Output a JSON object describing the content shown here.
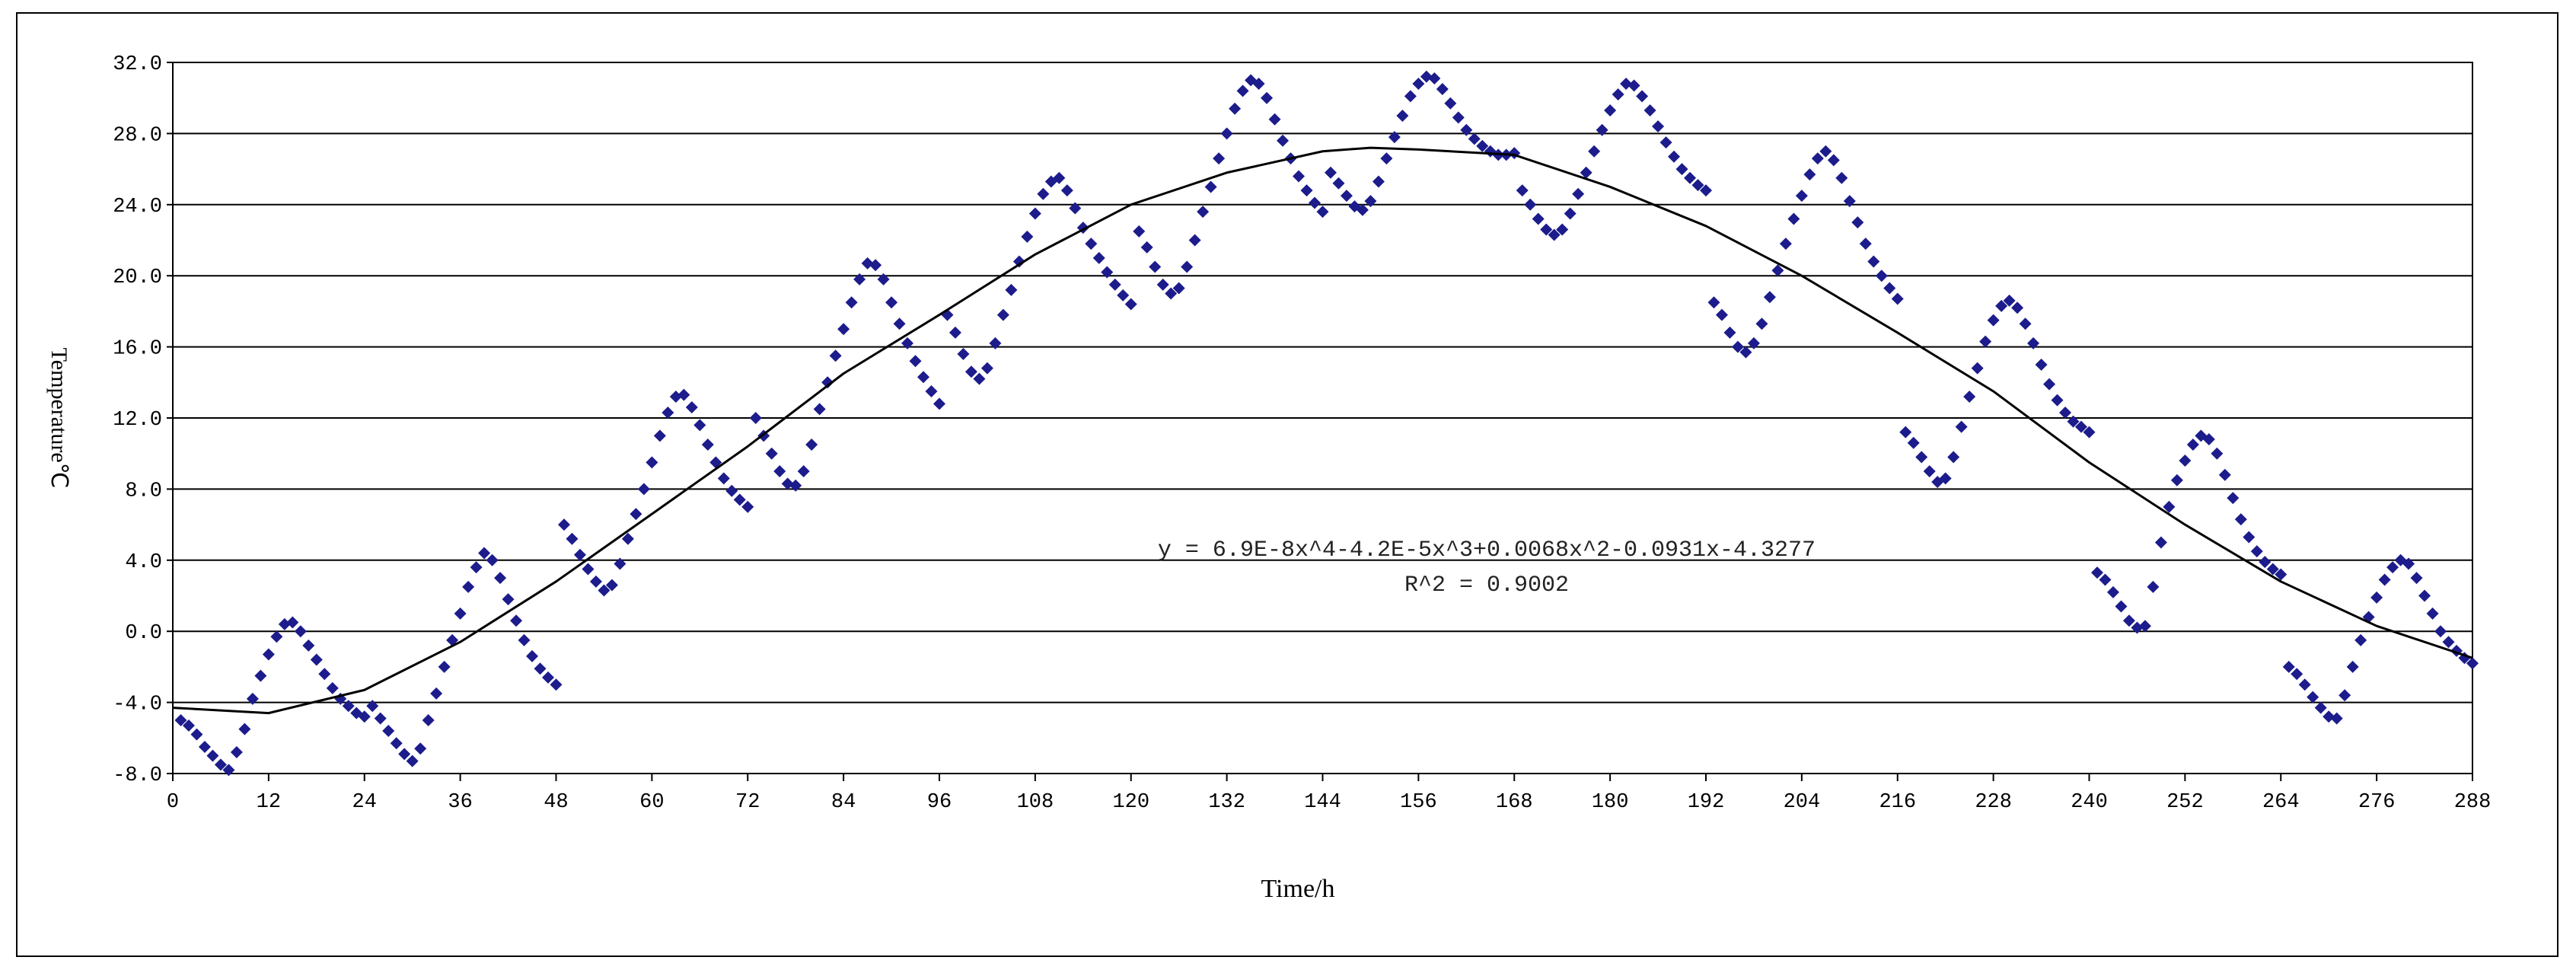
{
  "chart_data": {
    "type": "scatter",
    "xlabel": "Time/h",
    "ylabel": "Temperature℃",
    "xlim": [
      0,
      288
    ],
    "ylim": [
      -8,
      32
    ],
    "xticks": [
      0,
      12,
      24,
      36,
      48,
      60,
      72,
      84,
      96,
      108,
      120,
      132,
      144,
      156,
      168,
      180,
      192,
      204,
      216,
      228,
      240,
      252,
      264,
      276,
      288
    ],
    "yticks": [
      {
        "value": -8,
        "label": "-8.0"
      },
      {
        "value": -4,
        "label": "-4.0"
      },
      {
        "value": 0,
        "label": "0.0"
      },
      {
        "value": 4,
        "label": "4.0"
      },
      {
        "value": 8,
        "label": "8.0"
      },
      {
        "value": 12,
        "label": "12.0"
      },
      {
        "value": 16,
        "label": "16.0"
      },
      {
        "value": 20,
        "label": "20.0"
      },
      {
        "value": 24,
        "label": "24.0"
      },
      {
        "value": 28,
        "label": "28.0"
      },
      {
        "value": 32,
        "label": "32.0"
      }
    ],
    "grid": true,
    "color": "#1c1c8c",
    "x": [
      1,
      2,
      3,
      4,
      5,
      6,
      7,
      8,
      9,
      10,
      11,
      12,
      13,
      14,
      15,
      16,
      17,
      18,
      19,
      20,
      21,
      22,
      23,
      24,
      25,
      26,
      27,
      28,
      29,
      30,
      31,
      32,
      33,
      34,
      35,
      36,
      37,
      38,
      39,
      40,
      41,
      42,
      43,
      44,
      45,
      46,
      47,
      48,
      49,
      50,
      51,
      52,
      53,
      54,
      55,
      56,
      57,
      58,
      59,
      60,
      61,
      62,
      63,
      64,
      65,
      66,
      67,
      68,
      69,
      70,
      71,
      72,
      73,
      74,
      75,
      76,
      77,
      78,
      79,
      80,
      81,
      82,
      83,
      84,
      85,
      86,
      87,
      88,
      89,
      90,
      91,
      92,
      93,
      94,
      95,
      96,
      97,
      98,
      99,
      100,
      101,
      102,
      103,
      104,
      105,
      106,
      107,
      108,
      109,
      110,
      111,
      112,
      113,
      114,
      115,
      116,
      117,
      118,
      119,
      120,
      121,
      122,
      123,
      124,
      125,
      126,
      127,
      128,
      129,
      130,
      131,
      132,
      133,
      134,
      135,
      136,
      137,
      138,
      139,
      140,
      141,
      142,
      143,
      144,
      145,
      146,
      147,
      148,
      149,
      150,
      151,
      152,
      153,
      154,
      155,
      156,
      157,
      158,
      159,
      160,
      161,
      162,
      163,
      164,
      165,
      166,
      167,
      168,
      169,
      170,
      171,
      172,
      173,
      174,
      175,
      176,
      177,
      178,
      179,
      180,
      181,
      182,
      183,
      184,
      185,
      186,
      187,
      188,
      189,
      190,
      191,
      192,
      193,
      194,
      195,
      196,
      197,
      198,
      199,
      200,
      201,
      202,
      203,
      204,
      205,
      206,
      207,
      208,
      209,
      210,
      211,
      212,
      213,
      214,
      215,
      216,
      217,
      218,
      219,
      220,
      221,
      222,
      223,
      224,
      225,
      226,
      227,
      228,
      229,
      230,
      231,
      232,
      233,
      234,
      235,
      236,
      237,
      238,
      239,
      240,
      241,
      242,
      243,
      244,
      245,
      246,
      247,
      248,
      249,
      250,
      251,
      252,
      253,
      254,
      255,
      256,
      257,
      258,
      259,
      260,
      261,
      262,
      263,
      264,
      265,
      266,
      267,
      268,
      269,
      270,
      271,
      272,
      273,
      274,
      275,
      276,
      277,
      278,
      279,
      280,
      281,
      282,
      283,
      284,
      285,
      286,
      287,
      288
    ],
    "values": [
      -5,
      -5.3,
      -5.8,
      -6.5,
      -7,
      -7.5,
      -7.8,
      -6.8,
      -5.5,
      -3.8,
      -2.5,
      -1.3,
      -0.3,
      0.4,
      0.5,
      0,
      -0.8,
      -1.6,
      -2.4,
      -3.2,
      -3.8,
      -4.2,
      -4.6,
      -4.8,
      -4.2,
      -4.9,
      -5.6,
      -6.3,
      -6.9,
      -7.3,
      -6.6,
      -5,
      -3.5,
      -2,
      -0.5,
      1,
      2.5,
      3.6,
      4.4,
      4,
      3,
      1.8,
      0.6,
      -0.5,
      -1.4,
      -2.1,
      -2.6,
      -3,
      6,
      5.2,
      4.3,
      3.5,
      2.8,
      2.3,
      2.6,
      3.8,
      5.2,
      6.6,
      8,
      9.5,
      11,
      12.3,
      13.2,
      13.3,
      12.6,
      11.6,
      10.5,
      9.5,
      8.6,
      7.9,
      7.4,
      7,
      12,
      11,
      10,
      9,
      8.3,
      8.2,
      9,
      10.5,
      12.5,
      14,
      15.5,
      17,
      18.5,
      19.8,
      20.7,
      20.6,
      19.8,
      18.5,
      17.3,
      16.2,
      15.2,
      14.3,
      13.5,
      12.8,
      17.8,
      16.8,
      15.6,
      14.6,
      14.2,
      14.8,
      16.2,
      17.8,
      19.2,
      20.8,
      22.2,
      23.5,
      24.6,
      25.3,
      25.5,
      24.8,
      23.8,
      22.7,
      21.8,
      21,
      20.2,
      19.5,
      18.9,
      18.4,
      22.5,
      21.6,
      20.5,
      19.5,
      19,
      19.3,
      20.5,
      22,
      23.6,
      25,
      26.6,
      28,
      29.4,
      30.4,
      31,
      30.8,
      30,
      28.8,
      27.6,
      26.6,
      25.6,
      24.8,
      24.1,
      23.6,
      25.8,
      25.2,
      24.5,
      23.9,
      23.7,
      24.2,
      25.3,
      26.6,
      27.8,
      29,
      30.1,
      30.8,
      31.2,
      31.1,
      30.5,
      29.7,
      28.9,
      28.2,
      27.7,
      27.3,
      27,
      26.8,
      26.8,
      26.9,
      24.8,
      24,
      23.2,
      22.6,
      22.3,
      22.6,
      23.5,
      24.6,
      25.8,
      27,
      28.2,
      29.3,
      30.2,
      30.8,
      30.7,
      30.1,
      29.3,
      28.4,
      27.5,
      26.7,
      26,
      25.5,
      25.1,
      24.8,
      18.5,
      17.8,
      16.8,
      16,
      15.7,
      16.2,
      17.3,
      18.8,
      20.3,
      21.8,
      23.2,
      24.5,
      25.7,
      26.6,
      27,
      26.5,
      25.5,
      24.2,
      23,
      21.8,
      20.8,
      20,
      19.3,
      18.7,
      11.2,
      10.6,
      9.8,
      9,
      8.4,
      8.6,
      9.8,
      11.5,
      13.2,
      14.8,
      16.3,
      17.5,
      18.3,
      18.6,
      18.2,
      17.3,
      16.2,
      15,
      13.9,
      13,
      12.3,
      11.8,
      11.5,
      11.2,
      3.3,
      2.9,
      2.2,
      1.4,
      0.6,
      0.2,
      0.3,
      2.5,
      5,
      7,
      8.5,
      9.6,
      10.5,
      11,
      10.8,
      10,
      8.8,
      7.5,
      6.3,
      5.3,
      4.5,
      3.9,
      3.5,
      3.2,
      -2,
      -2.4,
      -3,
      -3.7,
      -4.3,
      -4.8,
      -4.9,
      -3.6,
      -2,
      -0.5,
      0.8,
      1.9,
      2.9,
      3.6,
      4,
      3.8,
      3,
      2,
      1,
      0,
      -0.6,
      -1.1,
      -1.5,
      -1.8
    ],
    "trendline": {
      "equation": "y = 6.9E-8x^4-4.2E-5x^3+0.0068x^2-0.0931x-4.3277",
      "r2": "R^2 = 0.9002",
      "color": "#000000",
      "x": [
        0,
        12,
        24,
        36,
        48,
        60,
        72,
        84,
        96,
        108,
        120,
        132,
        144,
        150,
        156,
        168,
        180,
        192,
        204,
        216,
        228,
        240,
        252,
        264,
        276,
        288
      ],
      "values": [
        -4.3,
        -4.6,
        -3.3,
        -0.6,
        2.8,
        6.6,
        10.4,
        14.5,
        17.8,
        21.2,
        24,
        25.8,
        27,
        27.2,
        27.1,
        26.8,
        25,
        22.8,
        20,
        16.8,
        13.5,
        9.5,
        6,
        2.8,
        0.3,
        -1.5
      ]
    }
  }
}
